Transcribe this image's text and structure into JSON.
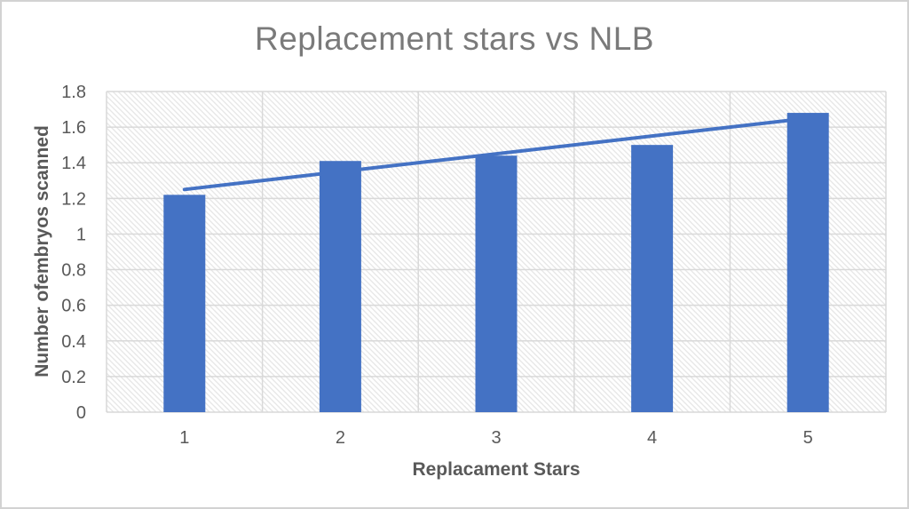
{
  "chart_data": {
    "type": "bar",
    "title": "Replacement stars vs NLB",
    "xlabel": "Replacament Stars",
    "ylabel": "Number ofembryos scanned",
    "categories": [
      "1",
      "2",
      "3",
      "4",
      "5"
    ],
    "values": [
      1.22,
      1.41,
      1.44,
      1.5,
      1.68
    ],
    "trendline": {
      "type": "linear",
      "endpoints_y": [
        1.25,
        1.65
      ],
      "spans_categories": [
        1,
        5
      ]
    },
    "ylim": [
      0,
      1.8
    ],
    "ytick_step": 0.2,
    "yticks": [
      "0",
      "0.2",
      "0.4",
      "0.6",
      "0.8",
      "1",
      "1.2",
      "1.4",
      "1.6",
      "1.8"
    ],
    "grid": true,
    "legend": false,
    "plot_background": "diagonal-hatch",
    "colors": {
      "bar": "#4472C4",
      "trendline": "#4472C4",
      "gridline": "#D9D9D9",
      "hatch": "#E7E7E7",
      "title_text": "#7A7A7A",
      "axis_text": "#595959",
      "figure_border": "#D2D2D2"
    }
  }
}
